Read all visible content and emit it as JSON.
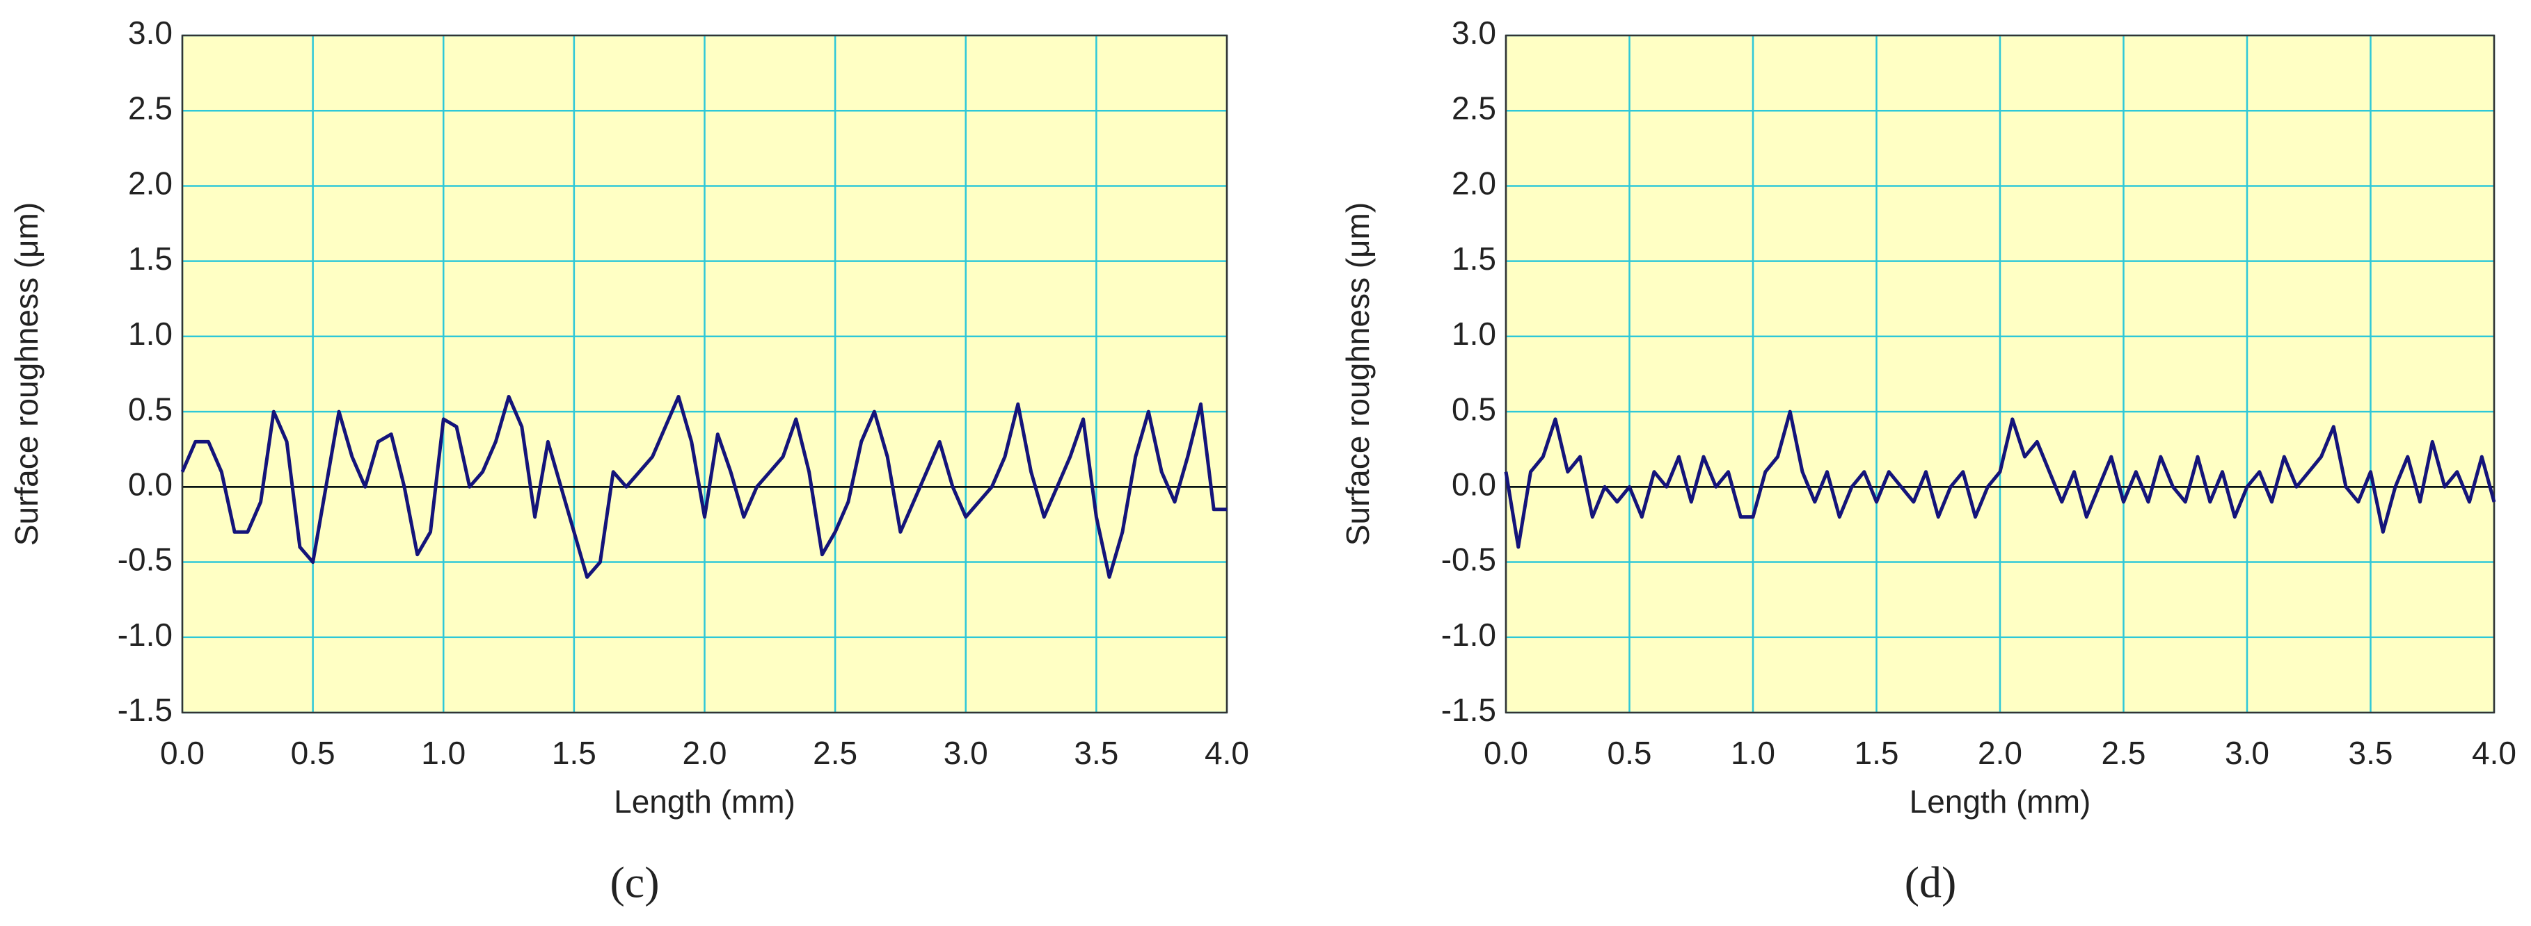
{
  "chart_data": [
    {
      "type": "line",
      "caption": "(c)",
      "xlabel": "Length (mm)",
      "ylabel": "Surface roughness (μm)",
      "color": "#14147a",
      "grid": true,
      "grid_color": "#2ec8d8",
      "background": "#ffffc4",
      "xlim": [
        0,
        4
      ],
      "ylim": [
        -1.5,
        3
      ],
      "xticks": [
        {
          "value": 0,
          "label": "0.0"
        },
        0.5,
        {
          "value": 1,
          "label": "1.0"
        },
        1.5,
        {
          "value": 2,
          "label": "2.0"
        },
        2.5,
        {
          "value": 3,
          "label": "3.0"
        },
        3.5,
        {
          "value": 4,
          "label": "4.0"
        }
      ],
      "yticks": [
        -1.5,
        {
          "value": -1,
          "label": "-1.0"
        },
        -0.5,
        {
          "value": 0,
          "label": "0.0"
        },
        0.5,
        {
          "value": 1,
          "label": "1.0"
        },
        1.5,
        {
          "value": 2,
          "label": "2.0"
        },
        2.5,
        {
          "value": 3,
          "label": "3.0"
        }
      ],
      "x": [
        0,
        0.05,
        0.1,
        0.15,
        0.2,
        0.25,
        0.3,
        0.35,
        0.4,
        0.45,
        0.5,
        0.55,
        0.6,
        0.65,
        0.7,
        0.75,
        0.8,
        0.85,
        0.9,
        0.95,
        1,
        1.05,
        1.1,
        1.15,
        1.2,
        1.25,
        1.3,
        1.35,
        1.4,
        1.45,
        1.5,
        1.55,
        1.6,
        1.65,
        1.7,
        1.75,
        1.8,
        1.85,
        1.9,
        1.95,
        2,
        2.05,
        2.1,
        2.15,
        2.2,
        2.25,
        2.3,
        2.35,
        2.4,
        2.45,
        2.5,
        2.55,
        2.6,
        2.65,
        2.7,
        2.75,
        2.8,
        2.85,
        2.9,
        2.95,
        3,
        3.05,
        3.1,
        3.15,
        3.2,
        3.25,
        3.3,
        3.35,
        3.4,
        3.45,
        3.5,
        3.55,
        3.6,
        3.65,
        3.7,
        3.75,
        3.8,
        3.85,
        3.9,
        3.95,
        4
      ],
      "values": [
        0.1,
        0.3,
        0.3,
        0.1,
        -0.3,
        -0.3,
        -0.1,
        0.5,
        0.3,
        -0.4,
        -0.5,
        0.0,
        0.5,
        0.2,
        0.0,
        0.3,
        0.35,
        0.0,
        -0.45,
        -0.3,
        0.45,
        0.4,
        0.0,
        0.1,
        0.3,
        0.6,
        0.4,
        -0.2,
        0.3,
        0.0,
        -0.3,
        -0.6,
        -0.5,
        0.1,
        0.0,
        0.1,
        0.2,
        0.4,
        0.6,
        0.3,
        -0.2,
        0.35,
        0.1,
        -0.2,
        0.0,
        0.1,
        0.2,
        0.45,
        0.1,
        -0.45,
        -0.3,
        -0.1,
        0.3,
        0.5,
        0.2,
        -0.3,
        -0.1,
        0.1,
        0.3,
        0.0,
        -0.2,
        -0.1,
        0.0,
        0.2,
        0.55,
        0.1,
        -0.2,
        0.0,
        0.2,
        0.45,
        -0.2,
        -0.6,
        -0.3,
        0.2,
        0.5,
        0.1,
        -0.1,
        0.2,
        0.55,
        -0.15,
        -0.15
      ]
    },
    {
      "type": "line",
      "caption": "(d)",
      "xlabel": "Length (mm)",
      "ylabel": "Surface roughness (μm)",
      "color": "#14147a",
      "grid": true,
      "grid_color": "#2ec8d8",
      "background": "#ffffc4",
      "xlim": [
        0,
        4
      ],
      "ylim": [
        -1.5,
        3
      ],
      "xticks": [
        {
          "value": 0,
          "label": "0.0"
        },
        0.5,
        {
          "value": 1,
          "label": "1.0"
        },
        1.5,
        {
          "value": 2,
          "label": "2.0"
        },
        2.5,
        {
          "value": 3,
          "label": "3.0"
        },
        3.5,
        {
          "value": 4,
          "label": "4.0"
        }
      ],
      "yticks": [
        -1.5,
        {
          "value": -1,
          "label": "-1.0"
        },
        -0.5,
        {
          "value": 0,
          "label": "0.0"
        },
        0.5,
        {
          "value": 1,
          "label": "1.0"
        },
        1.5,
        {
          "value": 2,
          "label": "2.0"
        },
        2.5,
        {
          "value": 3,
          "label": "3.0"
        }
      ],
      "x": [
        0,
        0.05,
        0.1,
        0.15,
        0.2,
        0.25,
        0.3,
        0.35,
        0.4,
        0.45,
        0.5,
        0.55,
        0.6,
        0.65,
        0.7,
        0.75,
        0.8,
        0.85,
        0.9,
        0.95,
        1,
        1.05,
        1.1,
        1.15,
        1.2,
        1.25,
        1.3,
        1.35,
        1.4,
        1.45,
        1.5,
        1.55,
        1.6,
        1.65,
        1.7,
        1.75,
        1.8,
        1.85,
        1.9,
        1.95,
        2,
        2.05,
        2.1,
        2.15,
        2.2,
        2.25,
        2.3,
        2.35,
        2.4,
        2.45,
        2.5,
        2.55,
        2.6,
        2.65,
        2.7,
        2.75,
        2.8,
        2.85,
        2.9,
        2.95,
        3,
        3.05,
        3.1,
        3.15,
        3.2,
        3.25,
        3.3,
        3.35,
        3.4,
        3.45,
        3.5,
        3.55,
        3.6,
        3.65,
        3.7,
        3.75,
        3.8,
        3.85,
        3.9,
        3.95,
        4
      ],
      "values": [
        0.1,
        -0.4,
        0.1,
        0.2,
        0.45,
        0.1,
        0.2,
        -0.2,
        0.0,
        -0.1,
        0.0,
        -0.2,
        0.1,
        0.0,
        0.2,
        -0.1,
        0.2,
        0.0,
        0.1,
        -0.2,
        -0.2,
        0.1,
        0.2,
        0.5,
        0.1,
        -0.1,
        0.1,
        -0.2,
        0.0,
        0.1,
        -0.1,
        0.1,
        0.0,
        -0.1,
        0.1,
        -0.2,
        0.0,
        0.1,
        -0.2,
        0.0,
        0.1,
        0.45,
        0.2,
        0.3,
        0.1,
        -0.1,
        0.1,
        -0.2,
        0.0,
        0.2,
        -0.1,
        0.1,
        -0.1,
        0.2,
        0.0,
        -0.1,
        0.2,
        -0.1,
        0.1,
        -0.2,
        0.0,
        0.1,
        -0.1,
        0.2,
        0.0,
        0.1,
        0.2,
        0.4,
        0.0,
        -0.1,
        0.1,
        -0.3,
        0.0,
        0.2,
        -0.1,
        0.3,
        0.0,
        0.1,
        -0.1,
        0.2,
        -0.1
      ]
    }
  ]
}
